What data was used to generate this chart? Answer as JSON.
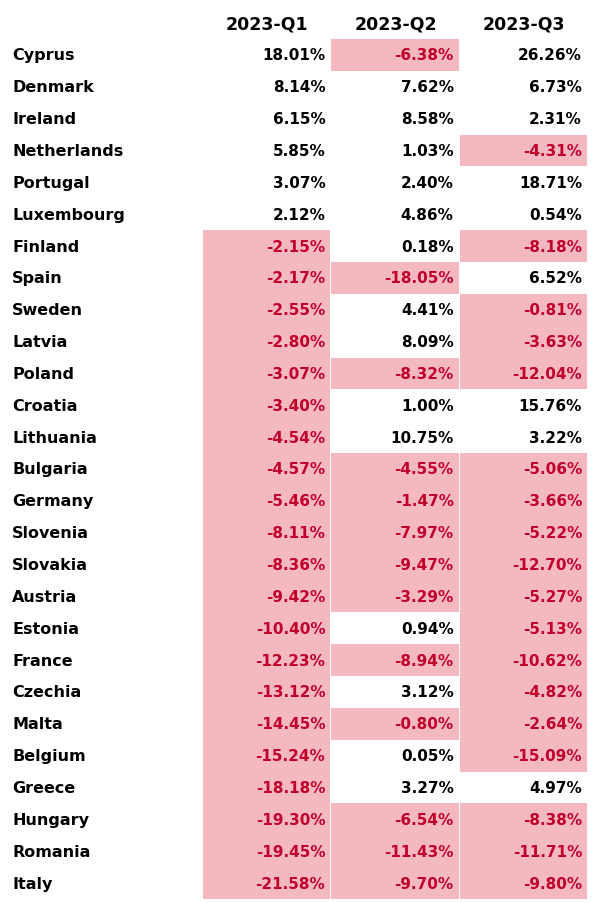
{
  "columns": [
    "2023-Q1",
    "2023-Q2",
    "2023-Q3"
  ],
  "countries": [
    "Cyprus",
    "Denmark",
    "Ireland",
    "Netherlands",
    "Portugal",
    "Luxembourg",
    "Finland",
    "Spain",
    "Sweden",
    "Latvia",
    "Poland",
    "Croatia",
    "Lithuania",
    "Bulgaria",
    "Germany",
    "Slovenia",
    "Slovakia",
    "Austria",
    "Estonia",
    "France",
    "Czechia",
    "Malta",
    "Belgium",
    "Greece",
    "Hungary",
    "Romania",
    "Italy"
  ],
  "values": [
    [
      18.01,
      -6.38,
      26.26
    ],
    [
      8.14,
      7.62,
      6.73
    ],
    [
      6.15,
      8.58,
      2.31
    ],
    [
      5.85,
      1.03,
      -4.31
    ],
    [
      3.07,
      2.4,
      18.71
    ],
    [
      2.12,
      4.86,
      0.54
    ],
    [
      -2.15,
      0.18,
      -8.18
    ],
    [
      -2.17,
      -18.05,
      6.52
    ],
    [
      -2.55,
      4.41,
      -0.81
    ],
    [
      -2.8,
      8.09,
      -3.63
    ],
    [
      -3.07,
      -8.32,
      -12.04
    ],
    [
      -3.4,
      1.0,
      15.76
    ],
    [
      -4.54,
      10.75,
      3.22
    ],
    [
      -4.57,
      -4.55,
      -5.06
    ],
    [
      -5.46,
      -1.47,
      -3.66
    ],
    [
      -8.11,
      -7.97,
      -5.22
    ],
    [
      -8.36,
      -9.47,
      -12.7
    ],
    [
      -9.42,
      -3.29,
      -5.27
    ],
    [
      -10.4,
      0.94,
      -5.13
    ],
    [
      -12.23,
      -8.94,
      -10.62
    ],
    [
      -13.12,
      3.12,
      -4.82
    ],
    [
      -14.45,
      -0.8,
      -2.64
    ],
    [
      -15.24,
      0.05,
      -15.09
    ],
    [
      -18.18,
      3.27,
      4.97
    ],
    [
      -19.3,
      -6.54,
      -8.38
    ],
    [
      -19.45,
      -11.43,
      -11.71
    ],
    [
      -21.58,
      -9.7,
      -9.8
    ]
  ],
  "bg_color": "#ffffff",
  "header_color": "#000000",
  "country_color": "#000000",
  "positive_text_color": "#000000",
  "negative_text_color": "#c0002a",
  "negative_cell_bg": "#f4b8c1",
  "positive_cell_bg": "#ffffff",
  "font_size": 11.0,
  "header_font_size": 12.5,
  "country_font_size": 11.5
}
